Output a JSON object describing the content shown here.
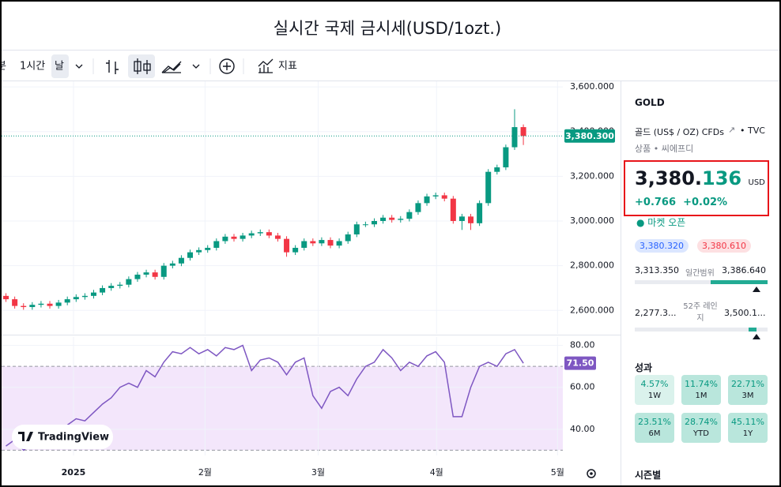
{
  "title": "실시간 국제 금시세(USD/1ozt.)",
  "toolbar": {
    "intervals": [
      "분",
      "1시간",
      "날"
    ],
    "indicators": "지표"
  },
  "watermark": "TradingView",
  "chart_data": [
    {
      "type": "candlestick",
      "up_color": "#089981",
      "down_color": "#f23645",
      "grid": true,
      "x": [
        0,
        1,
        2,
        3,
        4,
        5,
        6,
        7,
        8,
        9,
        10,
        11,
        12,
        13,
        14,
        15,
        16,
        17,
        18,
        19,
        20,
        21,
        22,
        23,
        24,
        25,
        26,
        27,
        28,
        29,
        30,
        31,
        32,
        33,
        34,
        35,
        36,
        37,
        38,
        39,
        40,
        41,
        42,
        43,
        44,
        45,
        46,
        47,
        48,
        49,
        50,
        51,
        52,
        53,
        54,
        55,
        56,
        57,
        58,
        59
      ],
      "open": [
        2665,
        2650,
        2620,
        2615,
        2625,
        2630,
        2620,
        2635,
        2650,
        2660,
        2665,
        2680,
        2700,
        2710,
        2715,
        2740,
        2760,
        2770,
        2750,
        2800,
        2810,
        2835,
        2860,
        2870,
        2880,
        2910,
        2930,
        2920,
        2935,
        2945,
        2950,
        2935,
        2920,
        2860,
        2880,
        2910,
        2900,
        2915,
        2890,
        2910,
        2940,
        2985,
        2985,
        3000,
        3015,
        3005,
        3010,
        3040,
        3080,
        3110,
        3115,
        3100,
        3000,
        3020,
        2990,
        3080,
        3220,
        3240,
        3330,
        3420
      ],
      "high": [
        2677,
        2662,
        2632,
        2637,
        2642,
        2642,
        2647,
        2662,
        2672,
        2677,
        2692,
        2712,
        2722,
        2727,
        2752,
        2772,
        2782,
        2782,
        2812,
        2822,
        2847,
        2872,
        2882,
        2892,
        2922,
        2942,
        2942,
        2947,
        2957,
        2962,
        2962,
        2947,
        2932,
        2892,
        2922,
        2922,
        2927,
        2927,
        2922,
        2952,
        2997,
        2997,
        3012,
        3027,
        3027,
        3022,
        3052,
        3092,
        3122,
        3127,
        3127,
        3112,
        3032,
        3032,
        3092,
        3232,
        3252,
        3342,
        3500,
        3432
      ],
      "low": [
        2638,
        2608,
        2603,
        2603,
        2613,
        2608,
        2608,
        2623,
        2638,
        2648,
        2653,
        2668,
        2688,
        2698,
        2703,
        2728,
        2748,
        2738,
        2738,
        2788,
        2798,
        2823,
        2848,
        2858,
        2868,
        2898,
        2908,
        2908,
        2923,
        2933,
        2923,
        2908,
        2840,
        2848,
        2868,
        2888,
        2888,
        2878,
        2878,
        2898,
        2928,
        2973,
        2973,
        2988,
        2993,
        2993,
        2998,
        3028,
        3068,
        3098,
        3088,
        2988,
        2960,
        2960,
        2978,
        3068,
        3208,
        3228,
        3318,
        3340
      ],
      "close": [
        2650,
        2620,
        2615,
        2625,
        2630,
        2620,
        2635,
        2650,
        2660,
        2665,
        2680,
        2700,
        2710,
        2715,
        2740,
        2760,
        2770,
        2750,
        2800,
        2810,
        2835,
        2860,
        2870,
        2880,
        2910,
        2930,
        2920,
        2935,
        2945,
        2950,
        2935,
        2920,
        2860,
        2880,
        2910,
        2900,
        2915,
        2890,
        2910,
        2940,
        2985,
        2985,
        3000,
        3015,
        3005,
        3010,
        3040,
        3080,
        3110,
        3115,
        3100,
        3000,
        3020,
        2990,
        3080,
        3220,
        3240,
        3330,
        3420,
        3380.3
      ],
      "xlim": [
        -0.5,
        63.5
      ],
      "ylim": [
        2495,
        3625
      ],
      "yticks": [
        {
          "value": 2600,
          "label": "2,600.000"
        },
        {
          "value": 2800,
          "label": "2,800.000"
        },
        {
          "value": 3000,
          "label": "3,000.000"
        },
        {
          "value": 3200,
          "label": "3,200.000"
        },
        {
          "value": 3400,
          "label": "3,400.000"
        },
        {
          "value": 3600,
          "label": "3,600.000"
        }
      ],
      "price_marker": {
        "value": 3380.3,
        "label": "3,380.300"
      }
    },
    {
      "type": "line",
      "color": "#7e57c2",
      "band": [
        30,
        70
      ],
      "band_color": "#f3e6fb",
      "grid": true,
      "x": [
        0,
        1,
        2,
        3,
        4,
        5,
        6,
        7,
        8,
        9,
        10,
        11,
        12,
        13,
        14,
        15,
        16,
        17,
        18,
        19,
        20,
        21,
        22,
        23,
        24,
        25,
        26,
        27,
        28,
        29,
        30,
        31,
        32,
        33,
        34,
        35,
        36,
        37,
        38,
        39,
        40,
        41,
        42,
        43,
        44,
        45,
        46,
        47,
        48,
        49,
        50,
        51,
        52,
        53,
        54,
        55,
        56,
        57,
        58,
        59
      ],
      "values": [
        32,
        35,
        30,
        33,
        36,
        34,
        38,
        42,
        45,
        44,
        48,
        52,
        55,
        60,
        62,
        60,
        68,
        65,
        72,
        77,
        76,
        79,
        76,
        78,
        75,
        79,
        78,
        80,
        68,
        73,
        74,
        72,
        66,
        72,
        74,
        56,
        50,
        58,
        60,
        56,
        64,
        70,
        72,
        78,
        74,
        68,
        72,
        70,
        75,
        77,
        72,
        46,
        46,
        60,
        70,
        72,
        70,
        76,
        78,
        71.5
      ],
      "xlim": [
        -0.5,
        63.5
      ],
      "ylim": [
        27.5,
        84
      ],
      "yticks": [
        {
          "value": 40,
          "label": "40.00"
        },
        {
          "value": 60,
          "label": "60.00"
        },
        {
          "value": 80,
          "label": "80.00"
        }
      ],
      "xticks": [
        {
          "value": 7.7,
          "label": "2025"
        },
        {
          "value": 22.7,
          "label": "2월"
        },
        {
          "value": 35.6,
          "label": "3월"
        },
        {
          "value": 49.1,
          "label": "4월"
        },
        {
          "value": 62.9,
          "label": "5월"
        }
      ],
      "value_marker": {
        "value": 71.5,
        "label": "71.50"
      }
    }
  ],
  "sidebar": {
    "symbol": "GOLD",
    "description": "골드 (US$ / OZ) CFDs",
    "source": "• TVC",
    "category": "상품 • 씨에프디",
    "price_main": "3,380.",
    "price_decimals": "136",
    "currency": "USD",
    "change": "+0.766",
    "change_percent": "+0.02%",
    "market_status": "마켓 오픈",
    "bid": "3,380.320",
    "ask": "3,380.610",
    "day_range": {
      "low": "3,313.350",
      "label": "일간범위",
      "high": "3,386.640"
    },
    "week52_range": {
      "low": "2,277.3...",
      "label": "52주 레인지",
      "high": "3,500.1..."
    },
    "performance": {
      "title": "성과",
      "items": [
        {
          "value": "4.57%",
          "period": "1W"
        },
        {
          "value": "11.74%",
          "period": "1M"
        },
        {
          "value": "22.71%",
          "period": "3M"
        },
        {
          "value": "23.51%",
          "period": "6M"
        },
        {
          "value": "28.74%",
          "period": "YTD"
        },
        {
          "value": "45.11%",
          "period": "1Y"
        }
      ]
    },
    "seasonals": "시즌별"
  }
}
